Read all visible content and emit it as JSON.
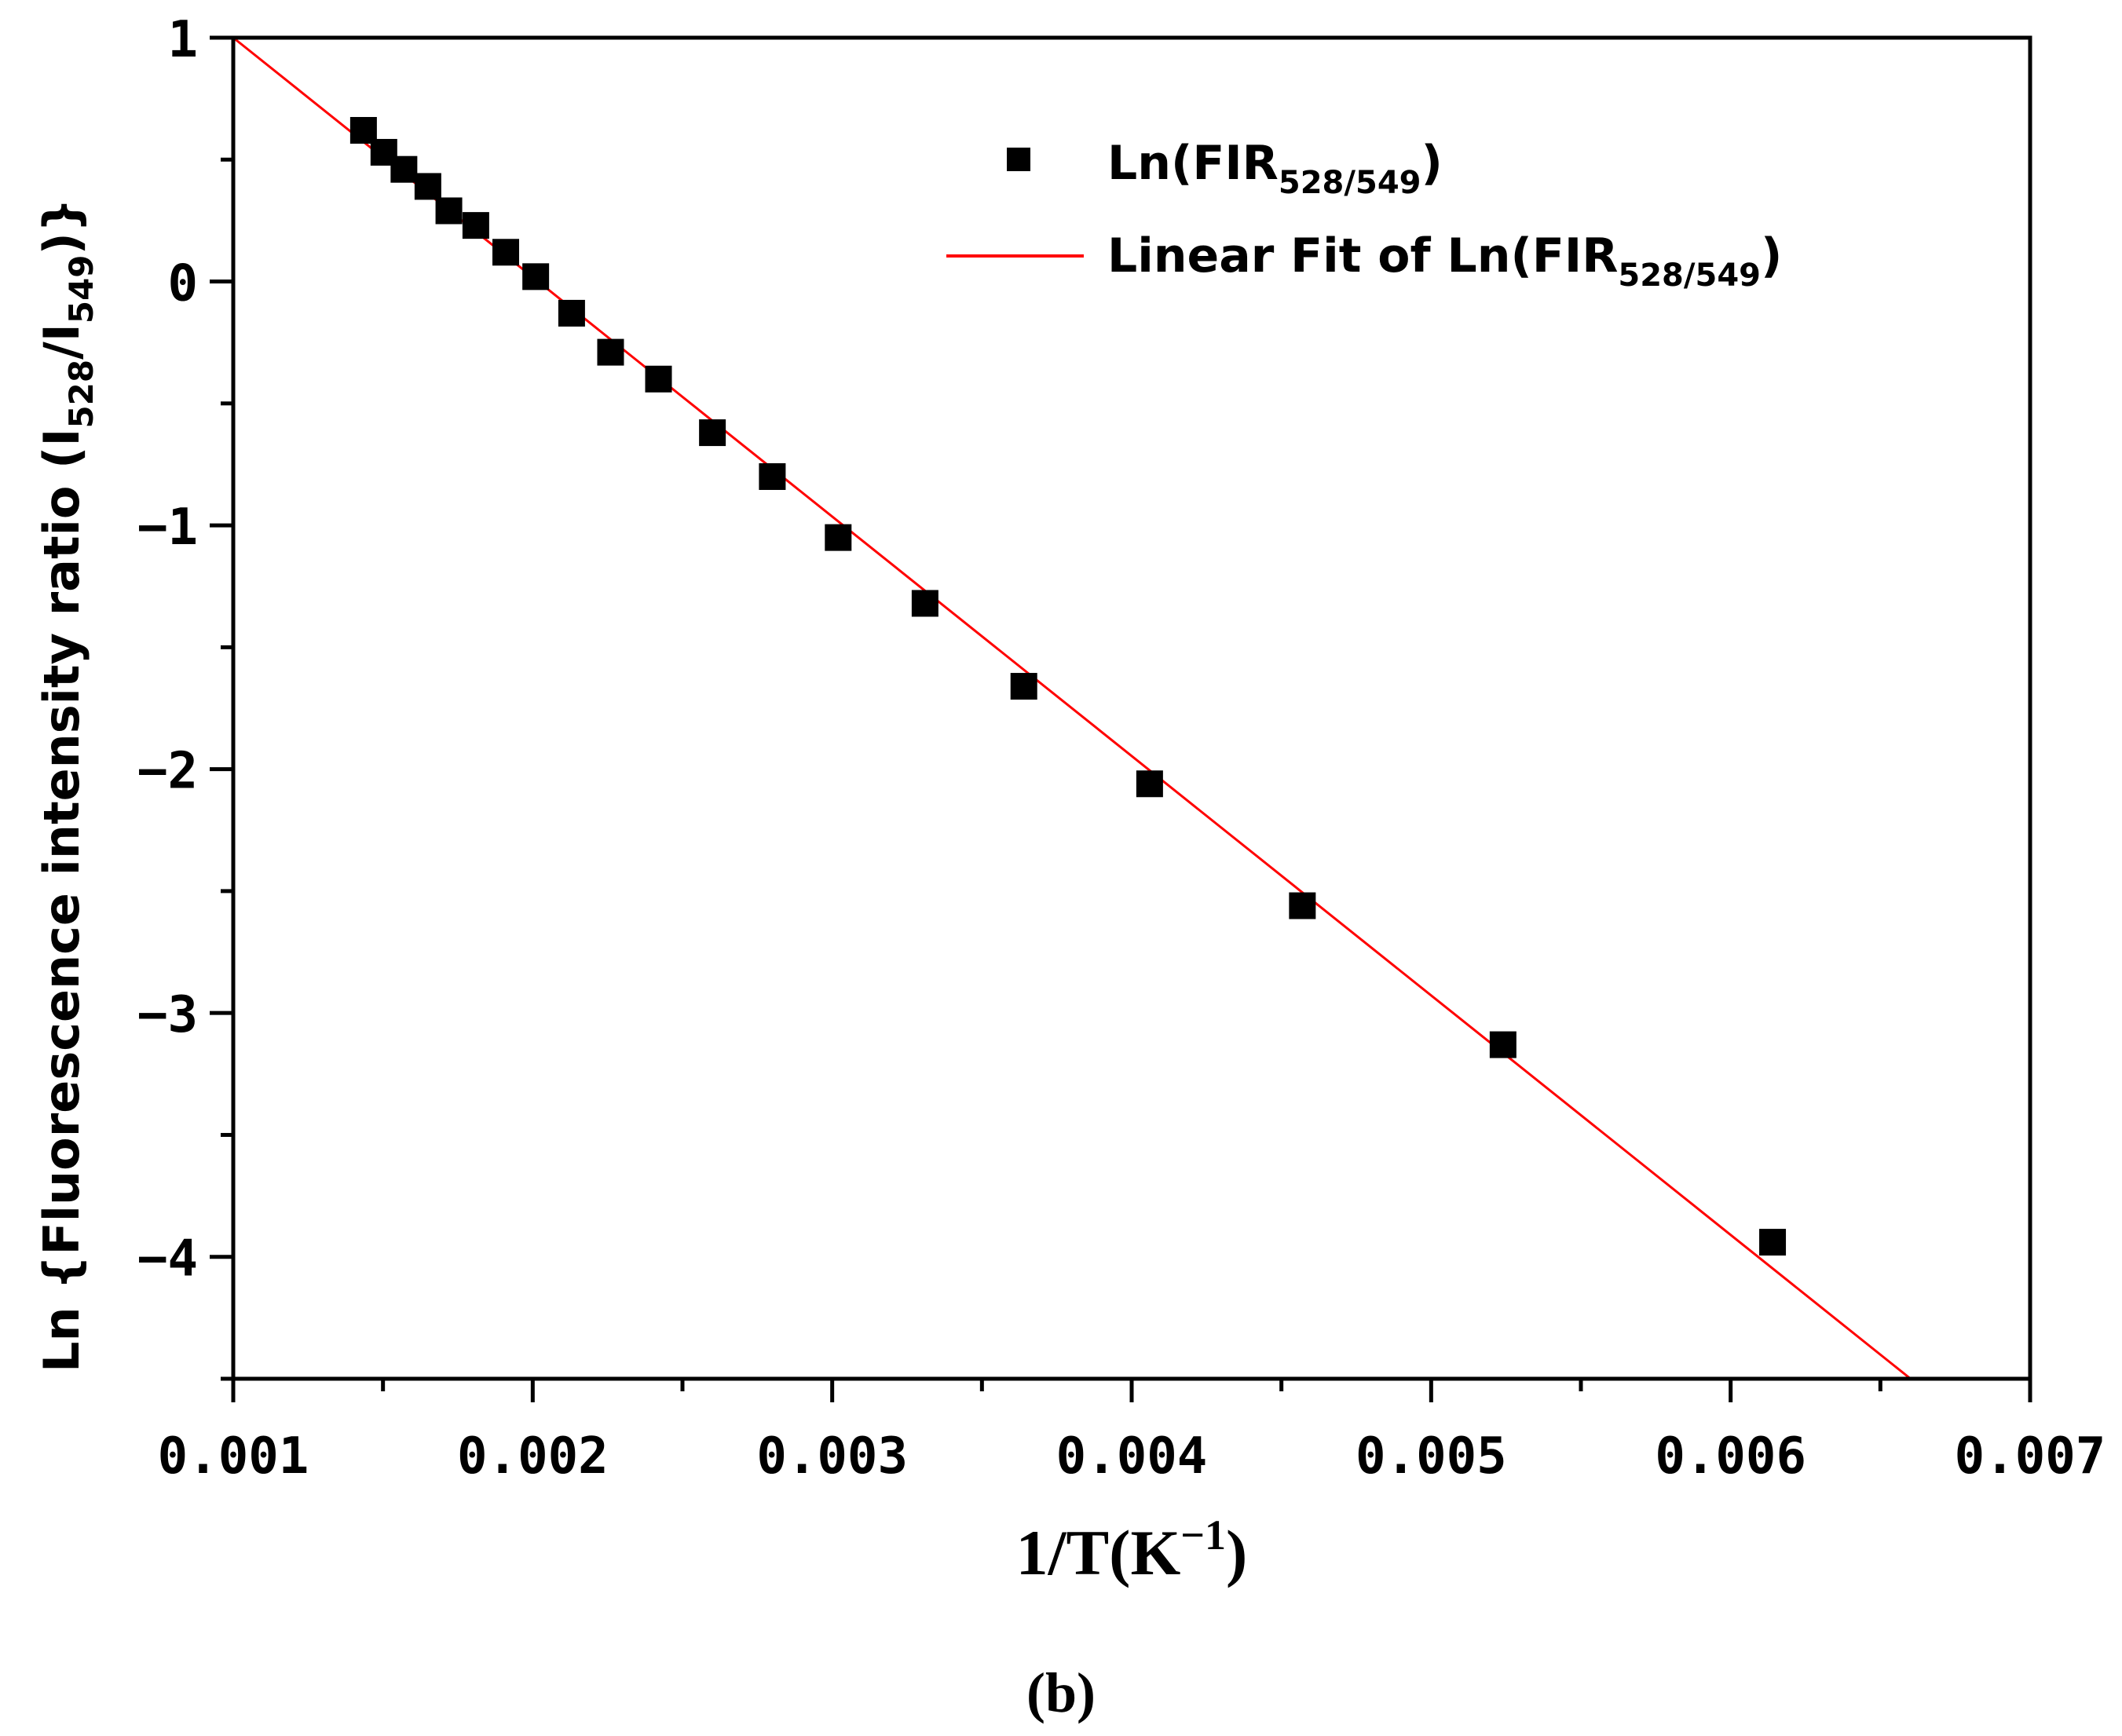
{
  "chart_data": {
    "type": "scatter",
    "title": "",
    "xlabel": "1/T(K",
    "xlabel_sup": "−1",
    "xlabel_end": ")",
    "ylabel": "Ln {Fluorescence intensity ratio (I",
    "ylabel_sub1": "528",
    "ylabel_mid": "/I",
    "ylabel_sub2": "549",
    "ylabel_end": ")}",
    "xlim": [
      0.001,
      0.007
    ],
    "ylim": [
      -4.5,
      1
    ],
    "xticks": [
      0.001,
      0.002,
      0.003,
      0.004,
      0.005,
      0.006,
      0.007
    ],
    "xtick_labels": [
      "0.001",
      "0.002",
      "0.003",
      "0.004",
      "0.005",
      "0.006",
      "0.007"
    ],
    "yticks": [
      1,
      0,
      -1,
      -2,
      -3,
      -4
    ],
    "ytick_labels": [
      "1",
      "0",
      "−1",
      "−2",
      "−3",
      "−4"
    ],
    "grid": false,
    "legend_position": "top-right",
    "series": [
      {
        "name": "Ln(FIR528/549)",
        "legend_main": "Ln(FIR",
        "legend_sub": "528/549",
        "legend_end": ")",
        "kind": "scatter",
        "color": "#000000",
        "x": [
          0.001435,
          0.001503,
          0.00157,
          0.00165,
          0.00172,
          0.00181,
          0.00191,
          0.00201,
          0.00213,
          0.00226,
          0.00242,
          0.0026,
          0.0028,
          0.00302,
          0.00331,
          0.00364,
          0.00406,
          0.00457,
          0.00524,
          0.00614
        ],
        "y": [
          0.62,
          0.53,
          0.46,
          0.39,
          0.29,
          0.23,
          0.12,
          0.02,
          -0.13,
          -0.29,
          -0.4,
          -0.62,
          -0.8,
          -1.05,
          -1.32,
          -1.66,
          -2.06,
          -2.56,
          -3.13,
          -3.94
        ]
      },
      {
        "name": "Linear Fit of Ln(FIR528/549)",
        "legend_main": "Linear Fit of Ln(FIR",
        "legend_sub": "528/549",
        "legend_end": ")",
        "kind": "line",
        "color": "#ff0000",
        "slope": -982,
        "intercept": 1.982
      }
    ],
    "caption": "(b)"
  }
}
